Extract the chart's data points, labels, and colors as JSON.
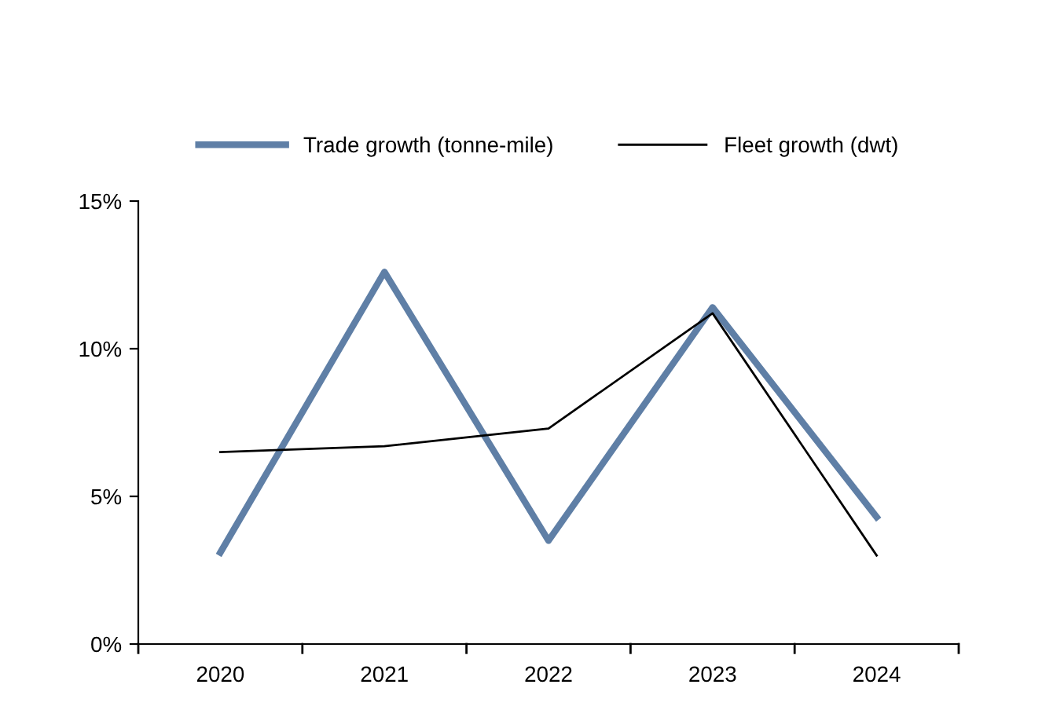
{
  "chart_data": {
    "type": "line",
    "categories": [
      "2020",
      "2021",
      "2022",
      "2023",
      "2024"
    ],
    "series": [
      {
        "name": "Trade growth (tonne-mile)",
        "color": "#5f7fa6",
        "values": [
          3.1,
          12.6,
          3.5,
          11.4,
          4.3
        ]
      },
      {
        "name": "Fleet growth (dwt)",
        "color": "#000000",
        "values": [
          6.5,
          6.7,
          7.3,
          11.2,
          3.0
        ]
      }
    ],
    "ylim": [
      0,
      15
    ],
    "yticks": [
      {
        "value": 0,
        "label": "0%"
      },
      {
        "value": 5,
        "label": "5%"
      },
      {
        "value": 10,
        "label": "10%"
      },
      {
        "value": 15,
        "label": "15%"
      }
    ],
    "grid": false,
    "legend": "top",
    "marker": "none",
    "line_style": "solid"
  }
}
